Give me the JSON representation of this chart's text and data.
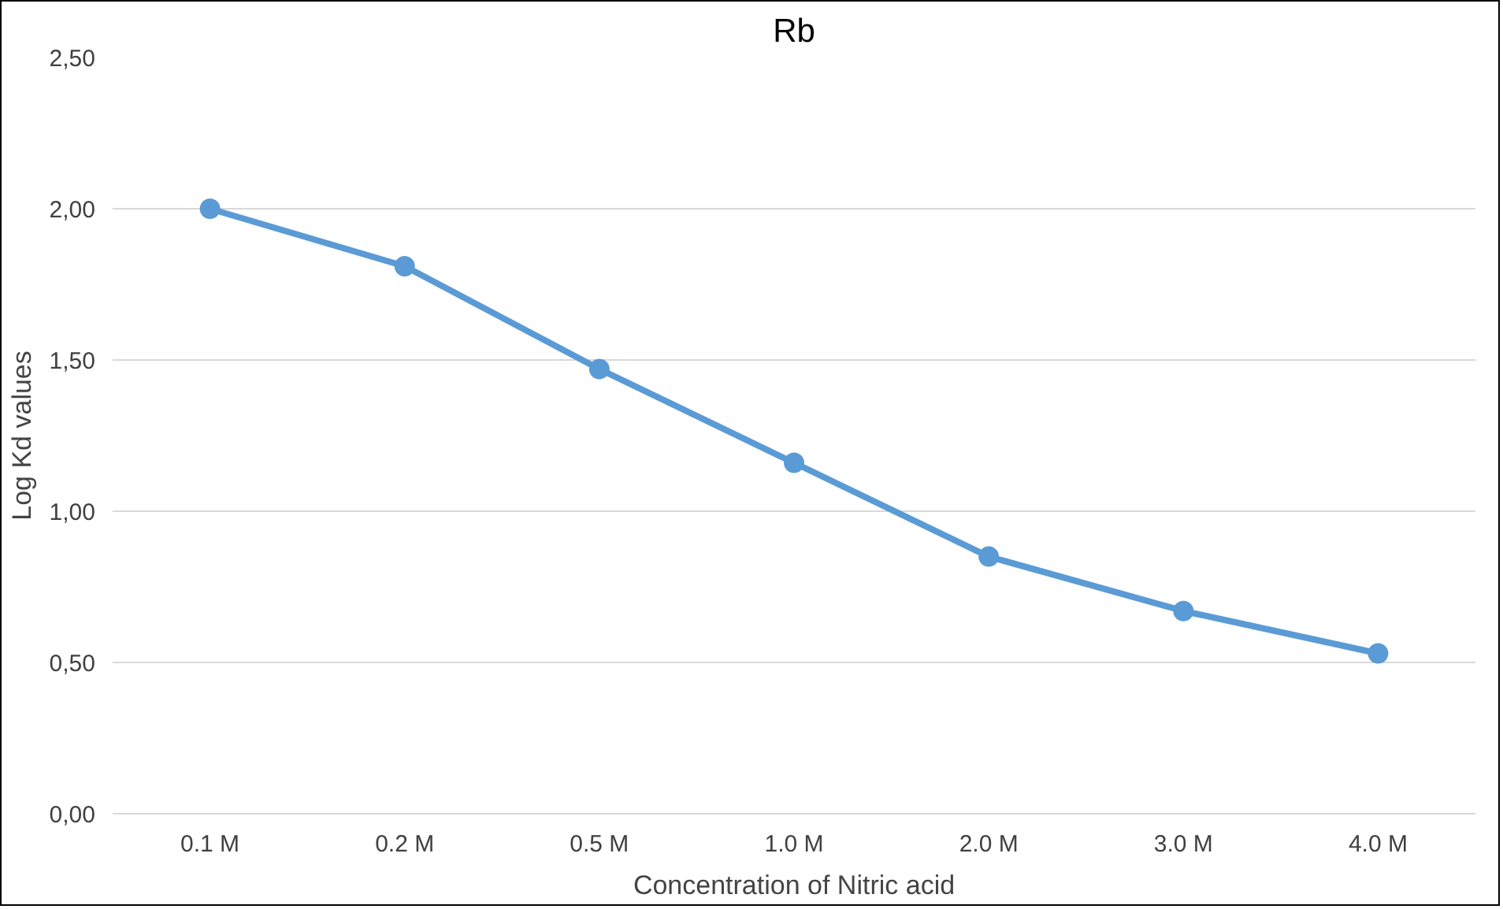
{
  "chart_data": {
    "type": "line",
    "title": "Rb",
    "xlabel": "Concentration of Nitric acid",
    "ylabel": "Log Kd values",
    "categories": [
      "0.1 M",
      "0.2 M",
      "0.5 M",
      "1.0 M",
      "2.0 M",
      "3.0 M",
      "4.0 M"
    ],
    "series": [
      {
        "color": "#5b9bd5",
        "values": [
          2.0,
          1.81,
          1.47,
          1.16,
          0.85,
          0.67,
          0.53
        ]
      }
    ],
    "ylim": [
      0,
      2.5
    ],
    "yticks": [
      {
        "value": 0,
        "label": "0,00"
      },
      {
        "value": 0.5,
        "label": "0,50"
      },
      {
        "value": 1,
        "label": "1,00"
      },
      {
        "value": 1.5,
        "label": "1,50"
      },
      {
        "value": 2,
        "label": "2,00"
      },
      {
        "value": 2.5,
        "label": "2,50"
      }
    ],
    "grid": "y",
    "marker": "circle",
    "line_style": "solid"
  }
}
